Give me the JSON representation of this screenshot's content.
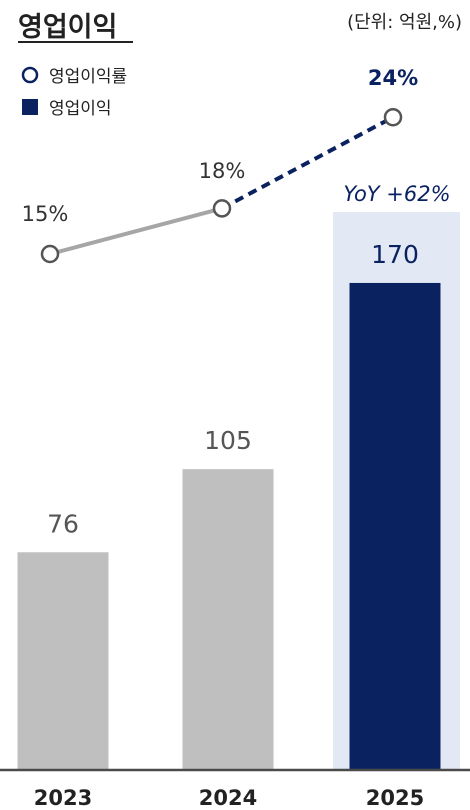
{
  "title": "영업이익",
  "unit_note": "(단위: 억원,%)",
  "legend": [
    {
      "label": "영업이익률",
      "marker": "circle"
    },
    {
      "label": "영업이익",
      "marker": "square"
    }
  ],
  "annotation": "YoY +62%",
  "colors": {
    "gray_bar": "#bfbfbf",
    "navy": "#0b2260",
    "highlight_bg": "#e3e8f5",
    "gray_line": "#a6a6a6",
    "axis": "#4a4a4a",
    "text": "#222222"
  },
  "chart_data": {
    "type": "bar",
    "categories": [
      "2023",
      "2024",
      "2025"
    ],
    "series": [
      {
        "name": "영업이익",
        "type": "bar",
        "values": [
          76,
          105,
          170
        ],
        "labels": [
          "76",
          "105",
          "170"
        ]
      },
      {
        "name": "영업이익률",
        "type": "line",
        "values": [
          15,
          18,
          24
        ],
        "labels": [
          "15%",
          "18%",
          "24%"
        ]
      }
    ],
    "highlight_category": "2025"
  }
}
